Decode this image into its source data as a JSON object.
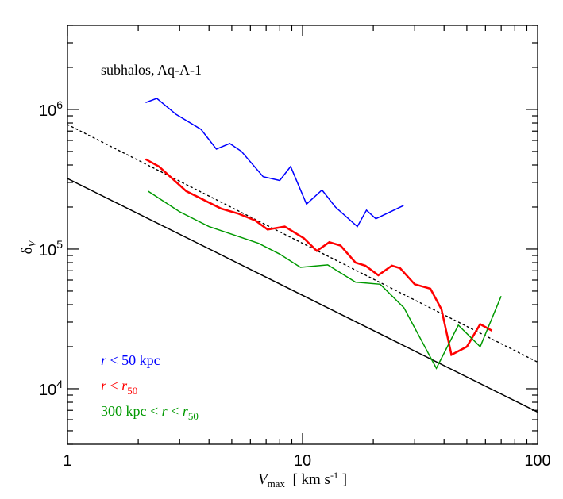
{
  "chart_data": {
    "type": "line",
    "title": "",
    "annotation": "subhalos, Aq-A-1",
    "xlabel": {
      "var": "V",
      "sub": "max",
      "units": "[ km s",
      "units_exp": "-1",
      "units_end": " ]"
    },
    "ylabel": {
      "var": "δ",
      "sub": "V"
    },
    "x_scale": "log",
    "y_scale": "log",
    "xlim": [
      1,
      100
    ],
    "ylim": [
      4000,
      4000000
    ],
    "x_ticks": [
      {
        "value": 1,
        "label": "1"
      },
      {
        "value": 10,
        "label": "10"
      },
      {
        "value": 100,
        "label": "100"
      }
    ],
    "y_ticks": [
      {
        "value": 10000,
        "base": "10",
        "exp": "4"
      },
      {
        "value": 100000,
        "base": "10",
        "exp": "5"
      },
      {
        "value": 1000000,
        "base": "10",
        "exp": "6"
      }
    ],
    "legend_placement": "bottom-left",
    "series": [
      {
        "name": "r < 50 kpc",
        "legend": {
          "parts": [
            {
              "t": "r",
              "i": true
            },
            {
              "t": " < 50 kpc"
            }
          ]
        },
        "color": "#0000ff",
        "style": "solid",
        "x": [
          2.15,
          2.4,
          2.9,
          3.7,
          4.3,
          4.9,
          5.5,
          6.8,
          8.0,
          8.9,
          10.4,
          12.1,
          13.8,
          17.1,
          18.7,
          20.5,
          26.9
        ],
        "y": [
          1120000,
          1200000,
          920000,
          720000,
          520000,
          570000,
          500000,
          330000,
          310000,
          390000,
          210000,
          265000,
          200000,
          145000,
          190000,
          165000,
          205000
        ]
      },
      {
        "name": "r < r50",
        "legend": {
          "parts": [
            {
              "t": "r",
              "i": true
            },
            {
              "t": " < "
            },
            {
              "t": "r",
              "i": true
            },
            {
              "t": "50",
              "sub": true
            }
          ]
        },
        "color": "#ff0000",
        "style": "solid",
        "width": 2.5,
        "x": [
          2.15,
          2.45,
          3.2,
          3.9,
          4.5,
          5.3,
          6.3,
          7.1,
          8.4,
          10.1,
          11.5,
          13.0,
          14.5,
          16.8,
          18.5,
          21.0,
          24.0,
          26.0,
          30.0,
          35.0,
          39.0,
          43.0,
          50.0,
          57.0,
          64.0
        ],
        "y": [
          440000,
          390000,
          260000,
          220000,
          195000,
          180000,
          160000,
          138000,
          145000,
          120000,
          97000,
          112000,
          106000,
          80000,
          76000,
          65000,
          76000,
          73000,
          56000,
          52000,
          37000,
          17500,
          20000,
          29000,
          26000
        ]
      },
      {
        "name": "300 kpc < r < r50",
        "legend": {
          "parts": [
            {
              "t": "300 kpc < "
            },
            {
              "t": "r",
              "i": true
            },
            {
              "t": " < "
            },
            {
              "t": "r",
              "i": true
            },
            {
              "t": "50",
              "sub": true
            }
          ]
        },
        "color": "#009900",
        "style": "solid",
        "x": [
          2.2,
          3.0,
          4.0,
          5.2,
          6.5,
          8.0,
          9.8,
          12.8,
          16.8,
          21.4,
          27.0,
          37.1,
          46.0,
          57.0,
          70.0
        ],
        "y": [
          260000,
          185000,
          145000,
          125000,
          110000,
          92000,
          74000,
          77000,
          58000,
          56000,
          38000,
          14000,
          28500,
          20000,
          46000
        ]
      }
    ],
    "reference_lines": [
      {
        "style": "solid",
        "color": "#000000",
        "x": [
          1,
          100
        ],
        "y": [
          320000,
          6800
        ]
      },
      {
        "style": "dotted",
        "color": "#000000",
        "x": [
          1,
          100
        ],
        "y": [
          780000,
          15500
        ]
      }
    ]
  }
}
